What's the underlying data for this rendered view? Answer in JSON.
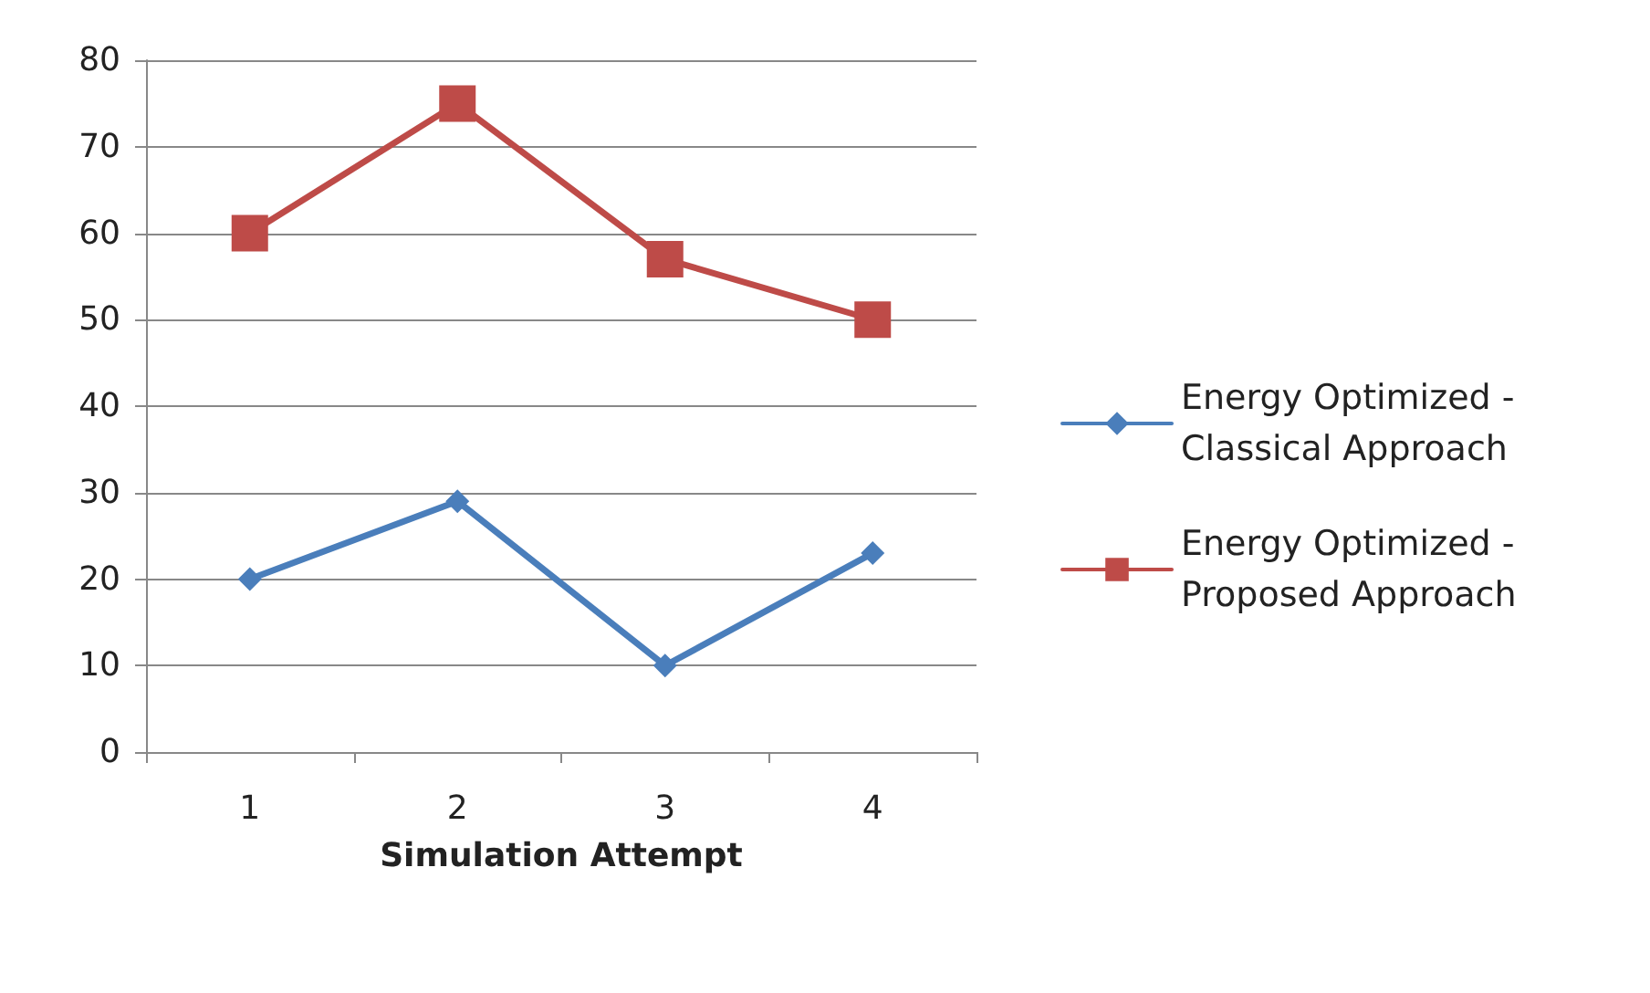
{
  "chart_data": {
    "type": "line",
    "xlabel": "Simulation Attempt",
    "categories": [
      "1",
      "2",
      "3",
      "4"
    ],
    "series": [
      {
        "name": "Energy Optimized - Classical Approach",
        "color": "#4a7ebb",
        "marker": "diamond",
        "values": [
          20,
          29,
          10,
          23
        ]
      },
      {
        "name": "Energy Optimized - Proposed Approach",
        "color": "#be4b48",
        "marker": "square",
        "values": [
          60,
          75,
          57,
          50
        ]
      }
    ],
    "ylim": [
      0,
      80
    ],
    "yticks": [
      0,
      10,
      20,
      30,
      40,
      50,
      60,
      70,
      80
    ],
    "grid": "y",
    "legend": "right"
  }
}
